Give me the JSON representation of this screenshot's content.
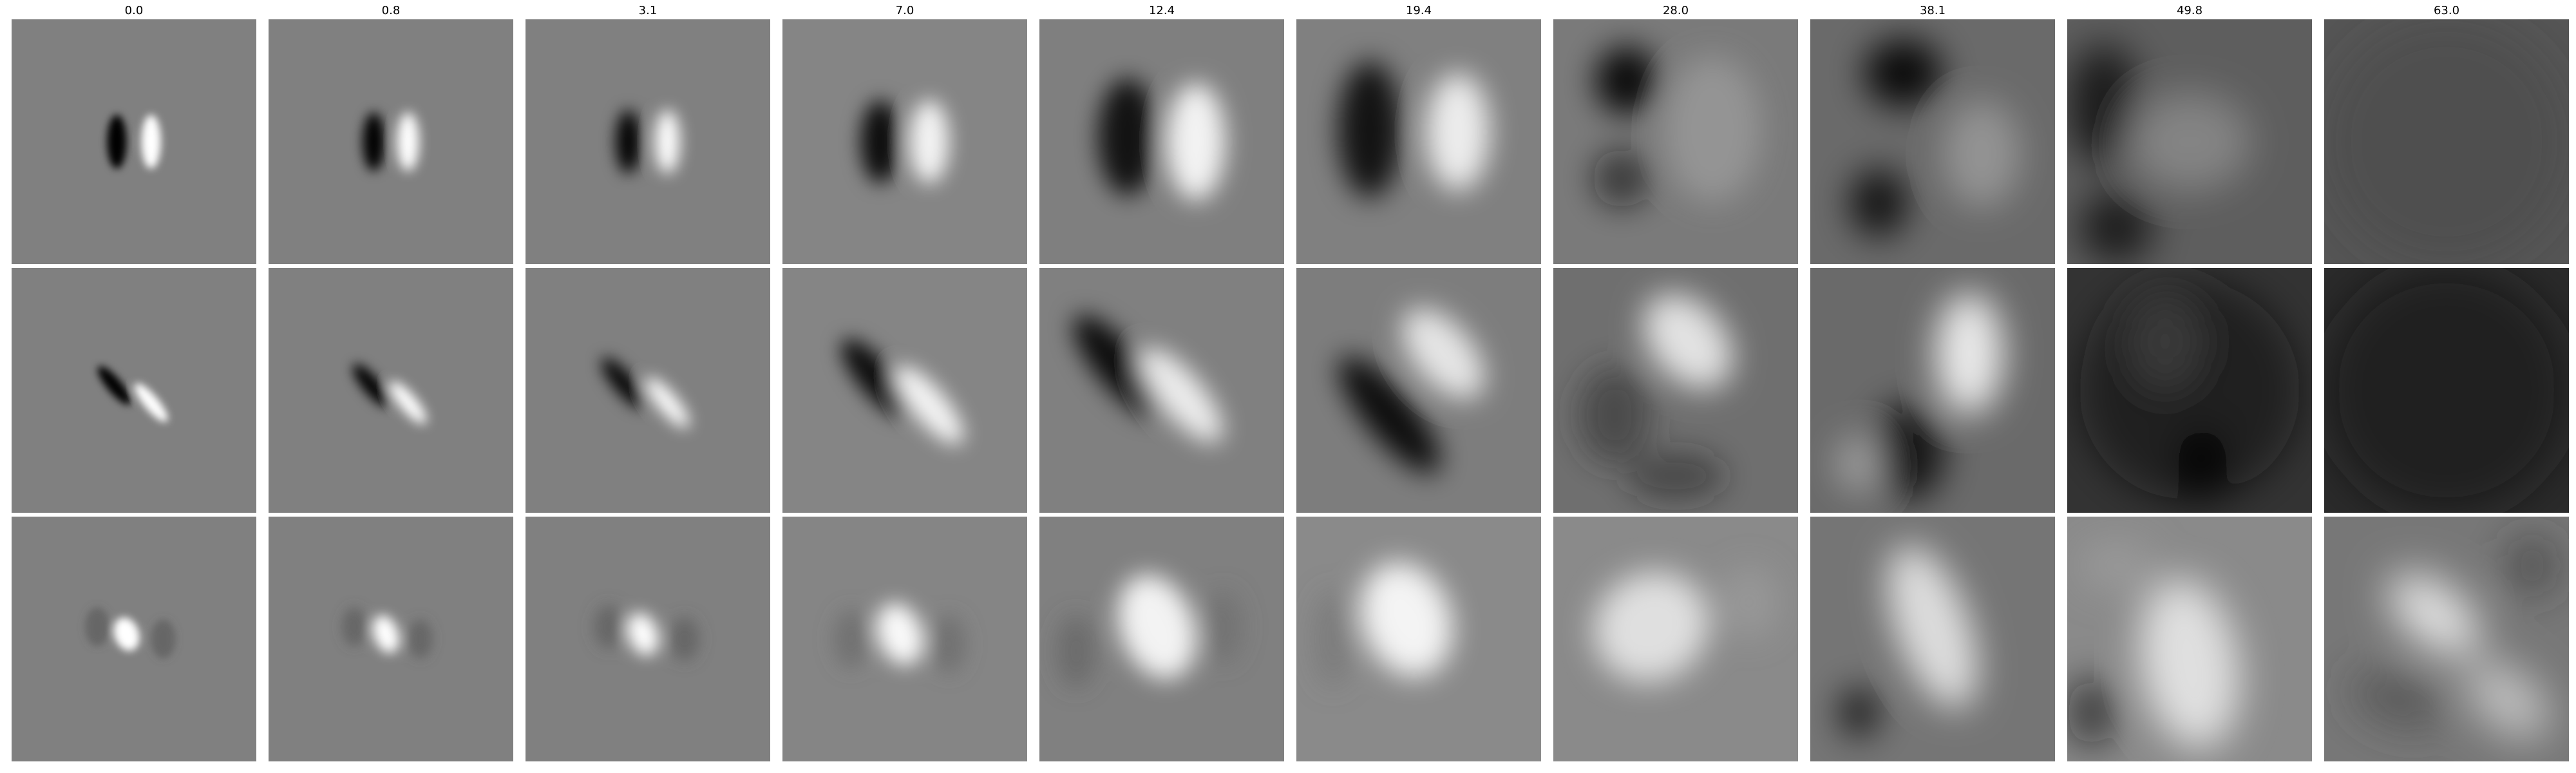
{
  "figure": {
    "column_titles": [
      "0.0",
      "0.8",
      "3.1",
      "7.0",
      "12.4",
      "19.4",
      "28.0",
      "38.1",
      "49.8",
      "63.0"
    ],
    "row_count": 3,
    "colormap": "grayscale",
    "colors": {
      "background": "#ffffff",
      "mid_gray": "#808080",
      "black": "#000000",
      "white": "#ffffff"
    }
  }
}
